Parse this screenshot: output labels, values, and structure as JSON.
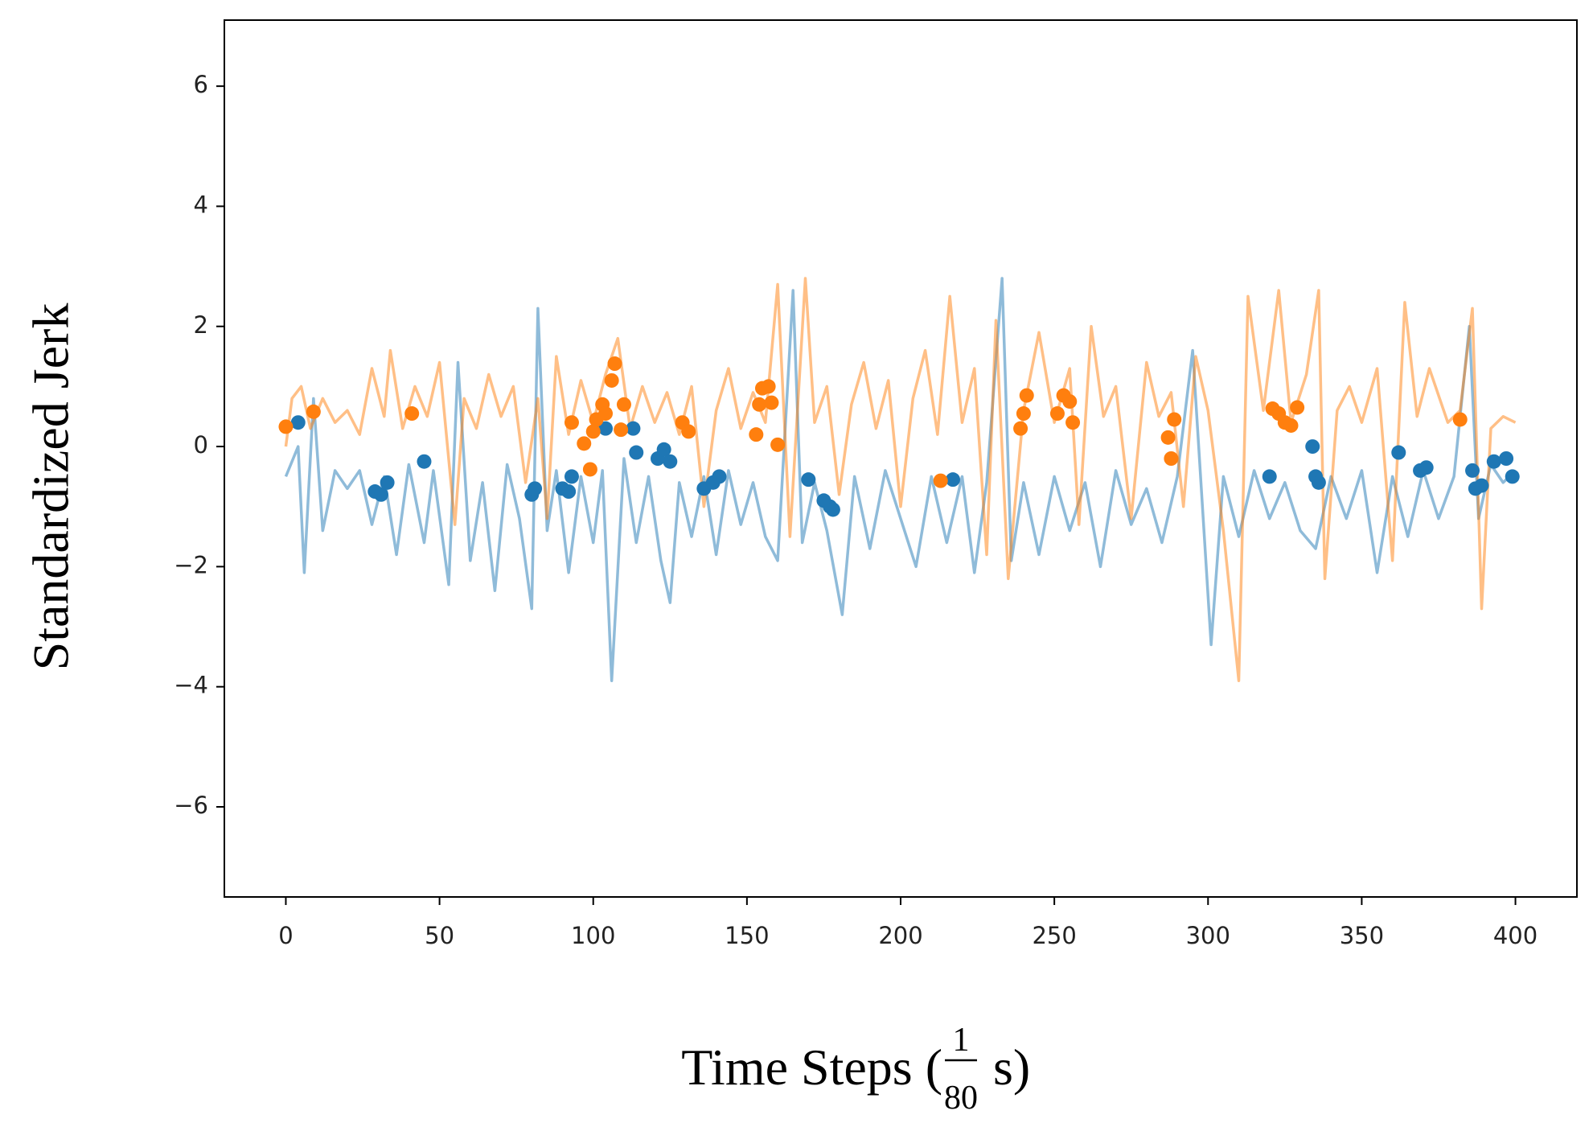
{
  "chart_data": {
    "type": "line",
    "ylabel": "Standardized Jerk",
    "xlabel": {
      "text": "Time Steps (",
      "numerator": "1",
      "denominator": "80",
      "unit": "s)"
    },
    "xlim": [
      -20,
      420
    ],
    "ylim": [
      -7.5,
      7.1
    ],
    "xticks": [
      0,
      50,
      100,
      150,
      200,
      250,
      300,
      350,
      400
    ],
    "yticks": [
      {
        "value": -6,
        "label": "−6"
      },
      {
        "value": -4,
        "label": "−4"
      },
      {
        "value": -2,
        "label": "−2"
      },
      0,
      2,
      4,
      6
    ],
    "grid": false,
    "series": [
      {
        "type": "line",
        "color": "#1f77b4",
        "opacity": 0.5,
        "x": [
          0,
          4,
          6,
          9,
          12,
          16,
          20,
          24,
          28,
          32,
          36,
          40,
          45,
          48,
          53,
          56,
          60,
          64,
          68,
          72,
          76,
          80,
          82,
          85,
          88,
          92,
          96,
          100,
          103,
          106,
          110,
          114,
          118,
          122,
          125,
          128,
          132,
          136,
          140,
          144,
          148,
          152,
          156,
          160,
          165,
          168,
          172,
          176,
          181,
          185,
          190,
          195,
          200,
          205,
          210,
          215,
          220,
          224,
          228,
          233,
          236,
          240,
          245,
          250,
          255,
          260,
          265,
          270,
          275,
          280,
          285,
          290,
          295,
          301,
          305,
          310,
          315,
          320,
          325,
          330,
          335,
          340,
          345,
          350,
          355,
          360,
          365,
          370,
          375,
          380,
          385,
          388,
          392,
          396,
          400
        ],
        "values": [
          -0.5,
          0,
          -2.1,
          0.8,
          -1.4,
          -0.4,
          -0.7,
          -0.4,
          -1.3,
          -0.5,
          -1.8,
          -0.3,
          -1.6,
          -0.4,
          -2.3,
          1.4,
          -1.9,
          -0.6,
          -2.4,
          -0.3,
          -1.2,
          -2.7,
          2.3,
          -1.4,
          -0.4,
          -2.1,
          -0.5,
          -1.6,
          -0.4,
          -3.9,
          -0.2,
          -1.6,
          -0.5,
          -1.9,
          -2.6,
          -0.6,
          -1.5,
          -0.5,
          -1.8,
          -0.4,
          -1.3,
          -0.6,
          -1.5,
          -1.9,
          2.6,
          -1.6,
          -0.6,
          -1.4,
          -2.8,
          -0.5,
          -1.7,
          -0.4,
          -1.2,
          -2.0,
          -0.5,
          -1.6,
          -0.5,
          -2.1,
          -0.6,
          2.8,
          -1.9,
          -0.6,
          -1.8,
          -0.5,
          -1.4,
          -0.6,
          -2.0,
          -0.4,
          -1.3,
          -0.7,
          -1.6,
          -0.5,
          1.6,
          -3.3,
          -0.5,
          -1.5,
          -0.4,
          -1.2,
          -0.6,
          -1.4,
          -1.7,
          -0.5,
          -1.2,
          -0.4,
          -2.1,
          -0.5,
          -1.5,
          -0.4,
          -1.2,
          -0.5,
          2.0,
          -1.2,
          -0.3,
          -0.6,
          -0.4
        ]
      },
      {
        "type": "line",
        "color": "#ff7f0e",
        "opacity": 0.5,
        "x": [
          0,
          2,
          5,
          8,
          12,
          16,
          20,
          24,
          28,
          32,
          34,
          38,
          42,
          46,
          50,
          55,
          58,
          62,
          66,
          70,
          74,
          78,
          82,
          85,
          88,
          92,
          96,
          100,
          104,
          108,
          112,
          116,
          120,
          124,
          128,
          132,
          136,
          140,
          144,
          148,
          152,
          156,
          160,
          164,
          169,
          172,
          176,
          180,
          184,
          188,
          192,
          196,
          200,
          204,
          208,
          212,
          216,
          220,
          224,
          228,
          231,
          235,
          240,
          245,
          250,
          255,
          258,
          262,
          266,
          270,
          275,
          280,
          284,
          288,
          292,
          296,
          300,
          305,
          310,
          313,
          318,
          323,
          327,
          332,
          336,
          338,
          342,
          346,
          350,
          355,
          360,
          364,
          368,
          372,
          378,
          382,
          386,
          389,
          392,
          396,
          400
        ],
        "values": [
          0,
          0.8,
          1.0,
          0.3,
          0.8,
          0.4,
          0.6,
          0.2,
          1.3,
          0.5,
          1.6,
          0.3,
          1.0,
          0.5,
          1.4,
          -1.3,
          0.8,
          0.3,
          1.2,
          0.5,
          1.0,
          -0.6,
          0.8,
          -1.2,
          1.5,
          0.2,
          1.1,
          0.4,
          1.2,
          1.8,
          0.3,
          1.0,
          0.4,
          0.9,
          0.2,
          1.0,
          -1.0,
          0.6,
          1.3,
          0.3,
          0.9,
          0.4,
          2.7,
          -1.5,
          2.8,
          0.4,
          1.0,
          -0.8,
          0.7,
          1.4,
          0.3,
          1.1,
          -1.0,
          0.8,
          1.6,
          0.2,
          2.5,
          0.4,
          1.3,
          -1.8,
          2.1,
          -2.2,
          0.6,
          1.9,
          0.4,
          1.3,
          -1.3,
          2.0,
          0.5,
          1.0,
          -1.2,
          1.4,
          0.5,
          0.9,
          -1.0,
          1.5,
          0.6,
          -1.4,
          -3.9,
          2.5,
          0.6,
          2.6,
          0.4,
          1.2,
          2.6,
          -2.2,
          0.6,
          1.0,
          0.4,
          1.3,
          -1.9,
          2.4,
          0.5,
          1.3,
          0.4,
          0.6,
          2.3,
          -2.7,
          0.3,
          0.5,
          0.4
        ]
      },
      {
        "type": "scatter",
        "color": "#1f77b4",
        "x": [
          4,
          29,
          31,
          33,
          45,
          80,
          81,
          90,
          92,
          93,
          104,
          113,
          114,
          121,
          123,
          125,
          136,
          139,
          141,
          170,
          175,
          177,
          178,
          217,
          320,
          334,
          335,
          336,
          362,
          369,
          371,
          386,
          387,
          389,
          393,
          397,
          399
        ],
        "values": [
          0.4,
          -0.75,
          -0.8,
          -0.6,
          -0.25,
          -0.8,
          -0.7,
          -0.7,
          -0.75,
          -0.5,
          0.3,
          0.3,
          -0.1,
          -0.2,
          -0.05,
          -0.25,
          -0.7,
          -0.6,
          -0.5,
          -0.55,
          -0.9,
          -1.0,
          -1.05,
          -0.55,
          -0.5,
          0,
          -0.5,
          -0.6,
          -0.1,
          -0.4,
          -0.35,
          -0.4,
          -0.7,
          -0.65,
          -0.25,
          -0.2,
          -0.5
        ]
      },
      {
        "type": "scatter",
        "color": "#ff7f0e",
        "x": [
          0,
          9,
          41,
          93,
          97,
          99,
          100,
          101,
          103,
          104,
          106,
          107,
          109,
          110,
          129,
          131,
          153,
          154,
          155,
          157,
          158,
          160,
          213,
          239,
          240,
          241,
          251,
          253,
          255,
          256,
          287,
          288,
          289,
          321,
          323,
          325,
          327,
          329,
          382
        ],
        "values": [
          0.33,
          0.58,
          0.55,
          0.4,
          0.05,
          -0.38,
          0.25,
          0.45,
          0.7,
          0.55,
          1.1,
          1.38,
          0.28,
          0.7,
          0.4,
          0.25,
          0.2,
          0.7,
          0.97,
          1.0,
          0.73,
          0.03,
          -0.57,
          0.3,
          0.55,
          0.85,
          0.55,
          0.85,
          0.75,
          0.4,
          0.15,
          -0.2,
          0.45,
          0.63,
          0.55,
          0.4,
          0.35,
          0.65,
          0.45
        ]
      }
    ]
  }
}
